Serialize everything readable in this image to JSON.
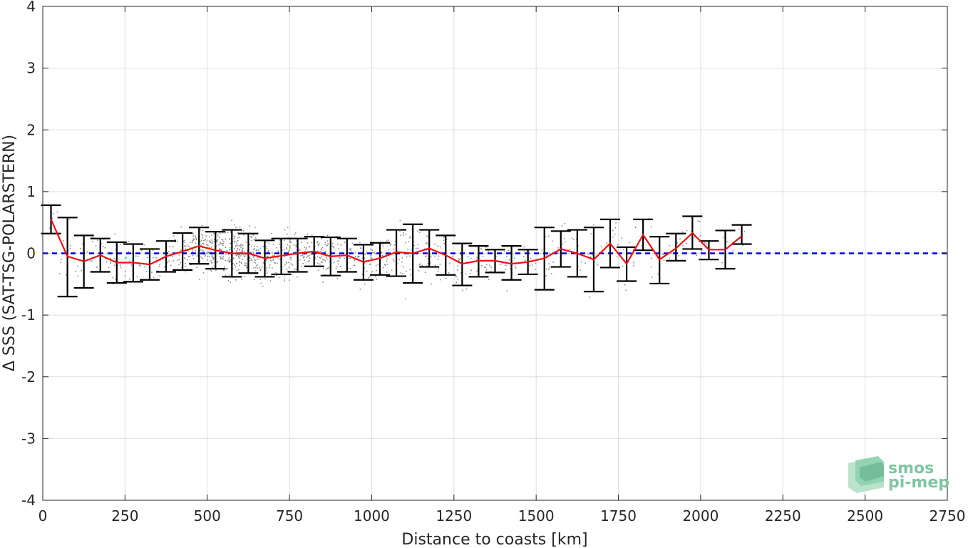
{
  "chart_data": {
    "type": "scatter",
    "xlabel": "Distance to coasts [km]",
    "ylabel": "Δ SSS (SAT-TSG-POLARSTERN)",
    "xlim": [
      0,
      2750
    ],
    "ylim": [
      -4,
      4
    ],
    "xticks": [
      0,
      250,
      500,
      750,
      1000,
      1250,
      1500,
      1750,
      2000,
      2250,
      2500,
      2750
    ],
    "yticks": [
      -4,
      -3,
      -2,
      -1,
      0,
      1,
      2,
      3,
      4
    ],
    "grid": true,
    "reference_line": {
      "y": 0,
      "style": "dashed",
      "color": "#0000e6"
    },
    "series": [
      {
        "kind": "binned-mean",
        "color": "#ee1111",
        "x": [
          25,
          75,
          125,
          175,
          225,
          275,
          325,
          375,
          425,
          475,
          525,
          575,
          625,
          675,
          725,
          775,
          825,
          875,
          925,
          975,
          1025,
          1075,
          1125,
          1175,
          1225,
          1275,
          1325,
          1375,
          1425,
          1475,
          1525,
          1575,
          1625,
          1675,
          1725,
          1775,
          1825,
          1875,
          1925,
          1975,
          2025,
          2075,
          2125
        ],
        "mean": [
          0.55,
          -0.05,
          -0.13,
          -0.03,
          -0.15,
          -0.15,
          -0.18,
          -0.05,
          0.03,
          0.12,
          0.05,
          0.0,
          0.0,
          -0.08,
          -0.04,
          0.0,
          0.03,
          -0.05,
          -0.03,
          -0.14,
          -0.08,
          0.02,
          0.0,
          0.08,
          -0.03,
          -0.17,
          -0.12,
          -0.12,
          -0.17,
          -0.14,
          -0.08,
          0.07,
          0.0,
          -0.1,
          0.16,
          -0.17,
          0.3,
          -0.1,
          0.08,
          0.33,
          0.06,
          0.06,
          0.28
        ],
        "lower": [
          0.32,
          -0.7,
          -0.56,
          -0.3,
          -0.48,
          -0.46,
          -0.43,
          -0.3,
          -0.27,
          -0.17,
          -0.25,
          -0.38,
          -0.32,
          -0.38,
          -0.34,
          -0.3,
          -0.21,
          -0.36,
          -0.3,
          -0.43,
          -0.35,
          -0.37,
          -0.48,
          -0.22,
          -0.35,
          -0.52,
          -0.38,
          -0.31,
          -0.43,
          -0.34,
          -0.59,
          -0.22,
          -0.38,
          -0.62,
          -0.23,
          -0.45,
          0.05,
          -0.49,
          -0.12,
          0.07,
          -0.1,
          -0.25,
          0.15
        ],
        "upper": [
          0.78,
          0.58,
          0.29,
          0.24,
          0.18,
          0.15,
          0.07,
          0.2,
          0.33,
          0.42,
          0.35,
          0.38,
          0.32,
          0.21,
          0.24,
          0.24,
          0.27,
          0.26,
          0.24,
          0.14,
          0.17,
          0.38,
          0.47,
          0.38,
          0.29,
          0.16,
          0.12,
          0.06,
          0.12,
          0.06,
          0.42,
          0.36,
          0.38,
          0.42,
          0.55,
          0.1,
          0.55,
          0.27,
          0.32,
          0.6,
          0.2,
          0.37,
          0.46
        ]
      }
    ],
    "scatter_color": "#8c8c8c"
  },
  "logo": {
    "line1": "smos",
    "line2": "pi-mep",
    "color": "#7fc6a4"
  }
}
